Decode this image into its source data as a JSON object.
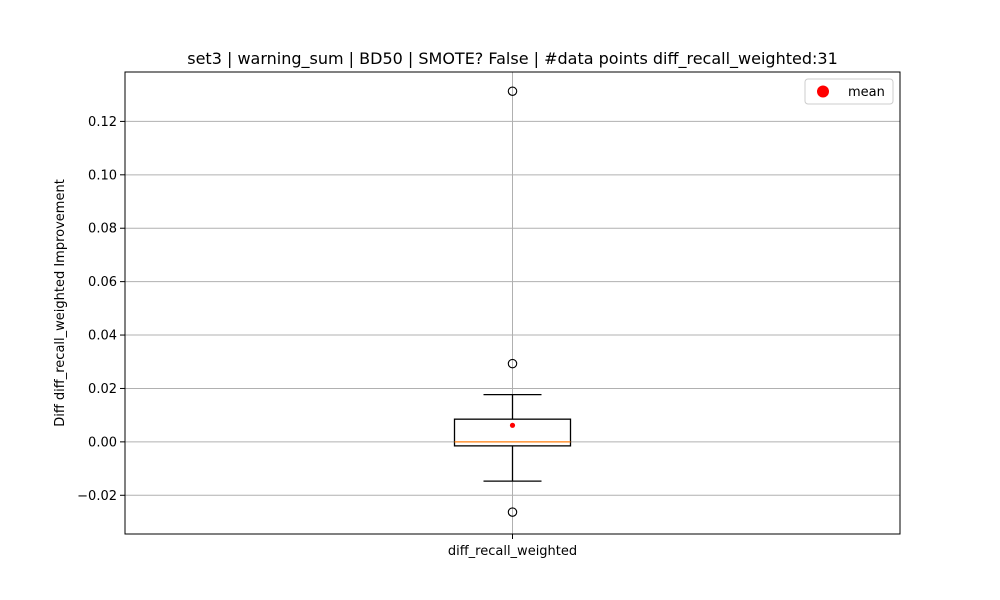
{
  "chart_data": {
    "type": "box",
    "title": "set3 | warning_sum | BD50 | SMOTE? False | #data points diff_recall_weighted:31",
    "xlabel": "",
    "ylabel": "Diff diff_recall_weighted Improvement",
    "categories": [
      "diff_recall_weighted"
    ],
    "ylim": [
      -0.0345,
      0.1385
    ],
    "yticks": [
      -0.02,
      0.0,
      0.02,
      0.04,
      0.06,
      0.08,
      0.1,
      0.12
    ],
    "ytick_labels": [
      "−0.02",
      "0.00",
      "0.02",
      "0.04",
      "0.06",
      "0.08",
      "0.10",
      "0.12"
    ],
    "grid": true,
    "legend": {
      "placement": "upper right",
      "entries": [
        "mean"
      ]
    },
    "series": [
      {
        "name": "diff_recall_weighted",
        "whisker_low": -0.0147,
        "q1": -0.0015,
        "median": 0.0,
        "q3": 0.0085,
        "whisker_high": 0.0177,
        "mean": 0.0062,
        "outliers": [
          0.1313,
          0.0293,
          -0.0263
        ]
      }
    ],
    "colors": {
      "median": "#ff7f0e",
      "mean": "#ff0000",
      "box": "#000000",
      "grid": "#b0b0b0"
    }
  }
}
